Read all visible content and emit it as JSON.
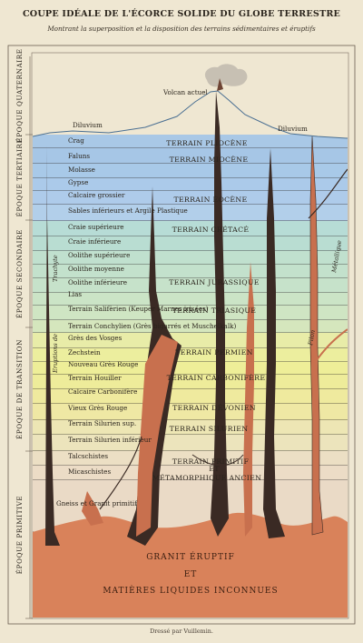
{
  "title": "COUPE IDÉALE DE L'ÉCORCE SOLIDE DU GLOBE TERRESTRE",
  "subtitle": "Montrant la superposition et la disposition des terrains sédimentaires et éruptifs",
  "credit": "Dressé par Vuillemin.",
  "volcano_label": "Volcan actuel",
  "diluvium_left": "Diluvium",
  "diluvium_right": "Diluvium",
  "epochs": [
    {
      "label": "ÉPOQUE QUATERNAIRE"
    },
    {
      "label": "ÉPOQUE TERTIAIRE"
    },
    {
      "label": "ÉPOQUE SECONDAIRE"
    },
    {
      "label": "ÉPOQUE DE TRANSITION"
    },
    {
      "label": "ÉPOQUE PRIMITIVE"
    }
  ],
  "layers": [
    {
      "label": "Crag",
      "color": "#a9c8e6"
    },
    {
      "label": "Faluns",
      "color": "#a6c6e6"
    },
    {
      "label": "Molasse",
      "color": "#a8c9e8"
    },
    {
      "label": "Gypse",
      "color": "#abcaea"
    },
    {
      "label": "Calcaire grossier",
      "color": "#aecbea"
    },
    {
      "label": "Sables inférieurs et Argile Plastique",
      "color": "#b2cfea"
    },
    {
      "label": "Craie supérieure",
      "color": "#b7dcd6"
    },
    {
      "label": "Craie inférieure",
      "color": "#b9ddd2"
    },
    {
      "label": "Oolithe supérieure",
      "color": "#c0e0ce"
    },
    {
      "label": "Oolithe moyenne",
      "color": "#c3e1cc"
    },
    {
      "label": "Oolithe inférieure",
      "color": "#c6e2ca"
    },
    {
      "label": "Lias",
      "color": "#cbe4c6"
    },
    {
      "label": "Terrain Salifèrien (Keuper Marnes irisées)",
      "color": "#cfe5c3"
    },
    {
      "label": "Terrain Conchylien (Grès bigarrés et Muschelkalk)",
      "color": "#d5e6bd"
    },
    {
      "label": "Grès des Vosges",
      "color": "#e8eca8"
    },
    {
      "label": "Zechstein",
      "color": "#ecee9e"
    },
    {
      "label": "Nouveau Grès Rouge",
      "color": "#eeee98"
    },
    {
      "label": "Terrain Houiller",
      "color": "#eeec9a"
    },
    {
      "label": "Calcaire Carbonifère",
      "color": "#efea9e"
    },
    {
      "label": "Vieux Grès Rouge",
      "color": "#efe8a4"
    },
    {
      "label": "Terrain Silurien sup.",
      "color": "#ede6b4"
    },
    {
      "label": "Terrain Silurien inférieur",
      "color": "#ece4bc"
    },
    {
      "label": "Talcschistes",
      "color": "#ecdfc4"
    },
    {
      "label": "Micaschistes",
      "color": "#ecdcc6"
    },
    {
      "label": "Gneiss et Granit primitif",
      "color": "#eadac6"
    }
  ],
  "terrains": [
    {
      "label": "TERRAIN PLIOCÈNE"
    },
    {
      "label": "TERRAIN MIOCÈNE"
    },
    {
      "label": "TERRAIN ÉOCÈNE"
    },
    {
      "label": "TERRAIN CRÉTACÉ"
    },
    {
      "label": "TERRAIN JURASSIQUE"
    },
    {
      "label": "TERRAIN TRIASIQUE"
    },
    {
      "label": "TERRAIN PERMIEN"
    },
    {
      "label": "TERRAIN CARBONIFÈRE"
    },
    {
      "label": "TERRAIN DÉVONIEN"
    },
    {
      "label": "TERRAIN SILURIEN"
    },
    {
      "label": "TERRAIN PRIMITIF"
    },
    {
      "label": "ET"
    },
    {
      "label": "MÉTAMORPHIQUE ANCIEN"
    }
  ],
  "vein_labels": {
    "trachyte": "Trachyte",
    "eruption": "Eruptions de",
    "metallique": "Métallique",
    "filon": "Filon"
  },
  "granite": {
    "line1": "GRANIT ÉRUPTIF",
    "line2": "ET",
    "line3": "MATIÈRES LIQUIDES INCONNUES"
  },
  "colors": {
    "paper": "#efe7d2",
    "granite": "#d9825a",
    "vein": "#3a2a24",
    "vein_red": "#c8704e"
  }
}
